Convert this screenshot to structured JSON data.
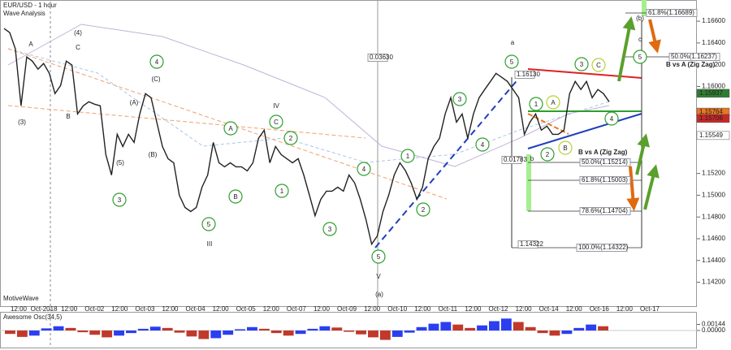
{
  "chart_data": {
    "type": "line",
    "title": "EUR/USD - 1 hour",
    "subtitle": "Wave Analysis",
    "watermark": "MotiveWave",
    "color": "#222222",
    "values": [
      1.16533,
      1.16495,
      1.16346,
      1.15822,
      1.16271,
      1.16233,
      1.16159,
      1.16211,
      1.16121,
      1.15934,
      1.16009,
      1.16233,
      1.16196,
      1.15747,
      1.15822,
      1.15859,
      1.15837,
      1.15822,
      1.15373,
      1.15186,
      1.1556,
      1.15448,
      1.1556,
      1.15485,
      1.15747,
      1.15934,
      1.15897,
      1.15672,
      1.15448,
      1.15336,
      1.15298,
      1.14999,
      1.14887,
      1.1485,
      1.14887,
      1.15074,
      1.15186,
      1.15485,
      1.15298,
      1.15261,
      1.15298,
      1.15261,
      1.15261,
      1.15224,
      1.15298,
      1.15523,
      1.15598,
      1.15298,
      1.15448,
      1.15373,
      1.15336,
      1.15298,
      1.15336,
      1.15186,
      1.14999,
      1.14812,
      1.14962,
      1.15037,
      1.15037,
      1.15074,
      1.15037,
      1.15186,
      1.15112,
      1.14962,
      1.14775,
      1.1455,
      1.14625,
      1.1485,
      1.14999,
      1.15186,
      1.15298,
      1.15224,
      1.15112,
      1.14962,
      1.15074,
      1.15336,
      1.15448,
      1.15523,
      1.15747,
      1.15897,
      1.15672,
      1.15747,
      1.15523,
      1.15747,
      1.15897,
      1.15972,
      1.16046,
      1.16121,
      1.16084,
      1.16046,
      1.15972,
      1.15897,
      1.1556,
      1.15672,
      1.15747,
      1.15598,
      1.15635,
      1.1556,
      1.1556,
      1.15598,
      1.15934,
      1.16046,
      1.15972,
      1.16046,
      1.15897,
      1.15972,
      1.15934,
      1.15859
    ],
    "x_tick_labels": [
      "12:00",
      "Oct-2018",
      "12:00",
      "Oct-02",
      "12:00",
      "Oct-03",
      "12:00",
      "Oct-04",
      "12:00",
      "Oct-05",
      "12:00",
      "Oct-07",
      "12:00",
      "Oct-09",
      "12:00",
      "Oct-10",
      "12:00",
      "Oct-11",
      "12:00",
      "Oct-12",
      "12:00",
      "Oct-14",
      "12:00",
      "Oct-16",
      "12:00",
      "Oct-17"
    ],
    "ylim": [
      1.1398,
      1.1678
    ],
    "yticks": [
      {
        "value": 1.166,
        "label": "1.16600"
      },
      {
        "value": 1.164,
        "label": "1.16400"
      },
      {
        "value": 1.162,
        "label": "1.16200"
      },
      {
        "value": 1.16,
        "label": "1.16000"
      },
      {
        "value": 1.152,
        "label": "1.15200"
      },
      {
        "value": 1.15,
        "label": "1.15000"
      },
      {
        "value": 1.148,
        "label": "1.14800"
      },
      {
        "value": 1.146,
        "label": "1.14600"
      },
      {
        "value": 1.144,
        "label": "1.14400"
      },
      {
        "value": 1.142,
        "label": "1.14200"
      }
    ],
    "price_tags": [
      {
        "value": 1.15937,
        "color": "#2e7d32"
      },
      {
        "value": 1.15764,
        "color": "#e87722"
      },
      {
        "value": 1.15706,
        "color": "#c62828"
      },
      {
        "value": 1.15549,
        "color": "#ffffff"
      }
    ],
    "fib_labels": [
      "61.8%(1.16689)",
      "50.0%(1.16237)",
      "B vs A (Zig Zag)",
      "B vs A (Zig Zag)",
      "50.0%(1.15214)",
      "61.8%(1.15003)",
      "78.6%(1.14704)",
      "100.0%(1.14322)"
    ],
    "measure_labels": [
      "0.03630",
      "0.01783",
      "1.16130",
      "1.14322"
    ],
    "annotations": [
      {
        "text": "(3)",
        "color": "#e87722",
        "circled": false
      },
      {
        "text": "(4)",
        "color": "#e87722",
        "circled": false
      },
      {
        "text": "(A)",
        "color": "#e87722",
        "circled": false
      },
      {
        "text": "(5)",
        "color": "#e87722",
        "circled": false
      },
      {
        "text": "(B)",
        "color": "#e87722",
        "circled": false
      },
      {
        "text": "(C)",
        "color": "#e87722",
        "circled": false
      },
      {
        "text": "A",
        "color": "#8b1a1a",
        "circled": false
      },
      {
        "text": "C",
        "color": "#8b1a1a",
        "circled": false
      },
      {
        "text": "B",
        "color": "#8b1a1a",
        "circled": false
      },
      {
        "text": "3",
        "color": "#2e9e2e",
        "circled": true
      },
      {
        "text": "4",
        "color": "#2e9e2e",
        "circled": true
      },
      {
        "text": "A",
        "color": "#2e9e2e",
        "circled": true
      },
      {
        "text": "B",
        "color": "#2e9e2e",
        "circled": true
      },
      {
        "text": "5",
        "color": "#2e9e2e",
        "circled": true
      },
      {
        "text": "C",
        "color": "#2e9e2e",
        "circled": true
      },
      {
        "text": "2",
        "color": "#2e9e2e",
        "circled": true
      },
      {
        "text": "1",
        "color": "#2e9e2e",
        "circled": true
      },
      {
        "text": "3",
        "color": "#2e9e2e",
        "circled": true
      },
      {
        "text": "4",
        "color": "#2e9e2e",
        "circled": true
      },
      {
        "text": "5",
        "color": "#2e9e2e",
        "circled": true
      },
      {
        "text": "2",
        "color": "#2e9e2e",
        "circled": true
      },
      {
        "text": "1",
        "color": "#2e9e2e",
        "circled": true
      },
      {
        "text": "3",
        "color": "#2e9e2e",
        "circled": true
      },
      {
        "text": "4",
        "color": "#2e9e2e",
        "circled": true
      },
      {
        "text": "5",
        "color": "#2e9e2e",
        "circled": true
      },
      {
        "text": "1",
        "color": "#2e9e2e",
        "circled": true
      },
      {
        "text": "2",
        "color": "#2e9e2e",
        "circled": true
      },
      {
        "text": "3",
        "color": "#2e9e2e",
        "circled": true
      },
      {
        "text": "4",
        "color": "#2e9e2e",
        "circled": true
      },
      {
        "text": "5",
        "color": "#2e9e2e",
        "circled": true
      },
      {
        "text": "A",
        "color": "#b5d334",
        "circled": true
      },
      {
        "text": "B",
        "color": "#b5d334",
        "circled": true
      },
      {
        "text": "C",
        "color": "#b5d334",
        "circled": true
      },
      {
        "text": "IV",
        "color": "#1f3fbf",
        "circled": false
      },
      {
        "text": "III",
        "color": "#1f3fbf",
        "circled": false
      },
      {
        "text": "V",
        "color": "#1f3fbf",
        "circled": false
      },
      {
        "text": "a",
        "color": "#1f3fbf",
        "circled": false
      },
      {
        "text": "b",
        "color": "#1f3fbf",
        "circled": false
      },
      {
        "text": "c",
        "color": "#1f3fbf",
        "circled": false
      },
      {
        "text": "(a)",
        "color": "#7b1f7b",
        "circled": false
      },
      {
        "text": "(b)",
        "color": "#7b1f7b",
        "circled": false
      }
    ],
    "oscillator": {
      "title": "Awesome Osc(34,5)",
      "ylim": [
        -0.004,
        0.004
      ],
      "yticks": [
        {
          "value": 0.00144,
          "label": "0.00144"
        },
        {
          "value": 0,
          "label": "0.00000"
        }
      ],
      "up_color": "#2b3ff0",
      "down_color": "#c0392b",
      "values": [
        -0.0008,
        -0.0015,
        -0.0012,
        0.0005,
        0.001,
        0.0006,
        -0.0004,
        -0.001,
        -0.0016,
        -0.0012,
        -0.0006,
        0.0004,
        0.0009,
        0.0006,
        -0.0005,
        -0.0014,
        -0.002,
        -0.0018,
        -0.001,
        0.0003,
        0.0008,
        0.0004,
        -0.0006,
        -0.0012,
        -0.0008,
        0.0004,
        0.001,
        0.0007,
        -0.0003,
        -0.0009,
        -0.0016,
        -0.0022,
        -0.0015,
        -0.0005,
        0.0008,
        0.0016,
        0.002,
        0.0014,
        0.0006,
        0.0012,
        0.0022,
        0.0028,
        0.002,
        0.0008,
        -0.0006,
        -0.0012,
        -0.0008,
        0.0006,
        0.0014,
        0.001
      ]
    }
  }
}
